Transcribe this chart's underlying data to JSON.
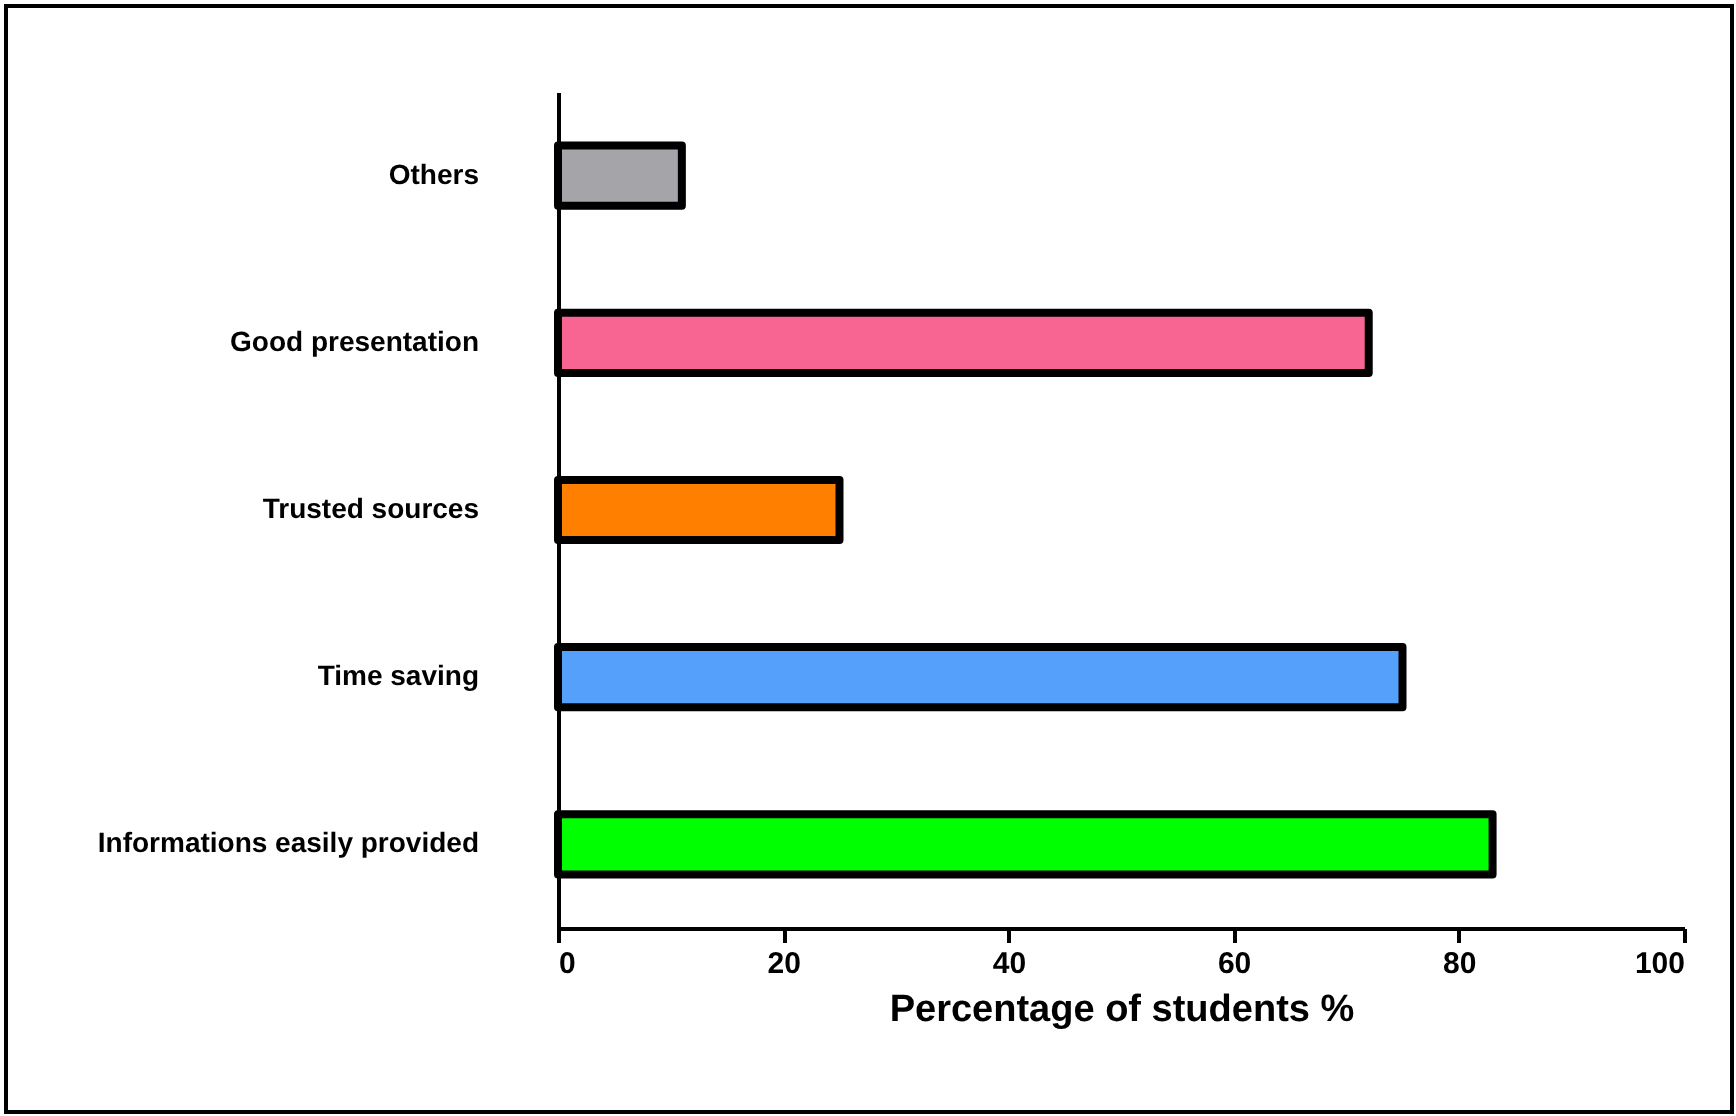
{
  "chart_data": {
    "type": "bar",
    "orientation": "horizontal",
    "xlabel": "Percentage of students %",
    "categories": [
      "Others",
      "Good presentation",
      "Trusted sources",
      "Time saving",
      "Informations easily provided"
    ],
    "values": [
      11,
      72,
      25,
      75,
      83
    ],
    "colors": [
      "#a5a4a9",
      "#f96593",
      "#ff8000",
      "#55a0fb",
      "#00ff00"
    ],
    "xlim": [
      0,
      100
    ],
    "xticks": [
      0,
      20,
      40,
      60,
      80,
      100
    ],
    "grid": false,
    "legend": false
  }
}
